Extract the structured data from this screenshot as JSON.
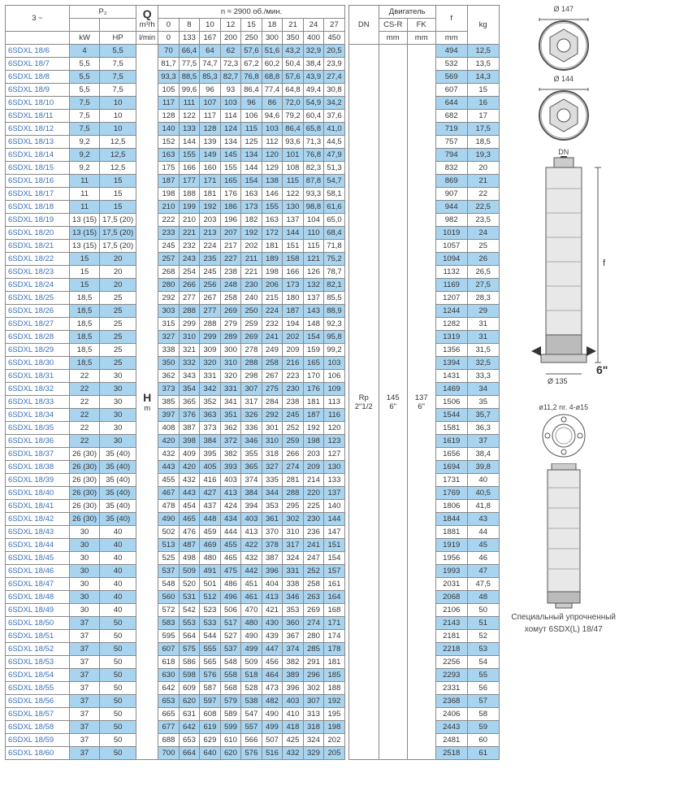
{
  "header": {
    "phase": "3 ~",
    "p2": "P₂",
    "kW": "kW",
    "HP": "HP",
    "Q": "Q",
    "q_unit1": "m³/h",
    "q_unit2": "l/min",
    "rpm": "n ≈ 2900 об./мин.",
    "DN": "DN",
    "motor": "Двигатель",
    "CSR": "CS-R",
    "FK": "FK",
    "mm": "mm",
    "f": "f",
    "kg": "kg",
    "H": "H",
    "m": "m"
  },
  "flow_m3h": [
    "0",
    "8",
    "10",
    "12",
    "15",
    "18",
    "21",
    "24",
    "27"
  ],
  "flow_lmin": [
    "0",
    "133",
    "167",
    "200",
    "250",
    "300",
    "350",
    "400",
    "450"
  ],
  "dn_val": "Rp 2\"1/2",
  "csr_val": "145 6\"",
  "fk_val": "137 6\"",
  "rows": [
    {
      "m": "6SDXL 18/6",
      "kw": "4",
      "hp": "5,5",
      "v": [
        "70",
        "66,4",
        "64",
        "62",
        "57,6",
        "51,6",
        "43,2",
        "32,9",
        "20,5"
      ],
      "f": "494",
      "kg": "12,5"
    },
    {
      "m": "6SDXL 18/7",
      "kw": "5,5",
      "hp": "7,5",
      "v": [
        "81,7",
        "77,5",
        "74,7",
        "72,3",
        "67,2",
        "60,2",
        "50,4",
        "38,4",
        "23,9"
      ],
      "f": "532",
      "kg": "13,5"
    },
    {
      "m": "6SDXL 18/8",
      "kw": "5,5",
      "hp": "7,5",
      "v": [
        "93,3",
        "88,5",
        "85,3",
        "82,7",
        "76,8",
        "68,8",
        "57,6",
        "43,9",
        "27,4"
      ],
      "f": "569",
      "kg": "14,3"
    },
    {
      "m": "6SDXL 18/9",
      "kw": "5,5",
      "hp": "7,5",
      "v": [
        "105",
        "99,6",
        "96",
        "93",
        "86,4",
        "77,4",
        "64,8",
        "49,4",
        "30,8"
      ],
      "f": "607",
      "kg": "15"
    },
    {
      "m": "6SDXL 18/10",
      "kw": "7,5",
      "hp": "10",
      "v": [
        "117",
        "111",
        "107",
        "103",
        "96",
        "86",
        "72,0",
        "54,9",
        "34,2"
      ],
      "f": "644",
      "kg": "16"
    },
    {
      "m": "6SDXL 18/11",
      "kw": "7,5",
      "hp": "10",
      "v": [
        "128",
        "122",
        "117",
        "114",
        "106",
        "94,6",
        "79,2",
        "60,4",
        "37,6"
      ],
      "f": "682",
      "kg": "17"
    },
    {
      "m": "6SDXL 18/12",
      "kw": "7,5",
      "hp": "10",
      "v": [
        "140",
        "133",
        "128",
        "124",
        "115",
        "103",
        "86,4",
        "65,8",
        "41,0"
      ],
      "f": "719",
      "kg": "17,5"
    },
    {
      "m": "6SDXL 18/13",
      "kw": "9,2",
      "hp": "12,5",
      "v": [
        "152",
        "144",
        "139",
        "134",
        "125",
        "112",
        "93,6",
        "71,3",
        "44,5"
      ],
      "f": "757",
      "kg": "18,5"
    },
    {
      "m": "6SDXL 18/14",
      "kw": "9,2",
      "hp": "12,5",
      "v": [
        "163",
        "155",
        "149",
        "145",
        "134",
        "120",
        "101",
        "76,8",
        "47,9"
      ],
      "f": "794",
      "kg": "19,3"
    },
    {
      "m": "6SDXL 18/15",
      "kw": "9,2",
      "hp": "12,5",
      "v": [
        "175",
        "166",
        "160",
        "155",
        "144",
        "129",
        "108",
        "82,3",
        "51,3"
      ],
      "f": "832",
      "kg": "20"
    },
    {
      "m": "6SDXL 18/16",
      "kw": "11",
      "hp": "15",
      "v": [
        "187",
        "177",
        "171",
        "165",
        "154",
        "138",
        "115",
        "87,8",
        "54,7"
      ],
      "f": "869",
      "kg": "21"
    },
    {
      "m": "6SDXL 18/17",
      "kw": "11",
      "hp": "15",
      "v": [
        "198",
        "188",
        "181",
        "176",
        "163",
        "146",
        "122",
        "93,3",
        "58,1"
      ],
      "f": "907",
      "kg": "22"
    },
    {
      "m": "6SDXL 18/18",
      "kw": "11",
      "hp": "15",
      "v": [
        "210",
        "199",
        "192",
        "186",
        "173",
        "155",
        "130",
        "98,8",
        "61,6"
      ],
      "f": "944",
      "kg": "22,5"
    },
    {
      "m": "6SDXL 18/19",
      "kw": "13 (15)",
      "hp": "17,5 (20)",
      "v": [
        "222",
        "210",
        "203",
        "196",
        "182",
        "163",
        "137",
        "104",
        "65,0"
      ],
      "f": "982",
      "kg": "23,5"
    },
    {
      "m": "6SDXL 18/20",
      "kw": "13 (15)",
      "hp": "17,5 (20)",
      "v": [
        "233",
        "221",
        "213",
        "207",
        "192",
        "172",
        "144",
        "110",
        "68,4"
      ],
      "f": "1019",
      "kg": "24"
    },
    {
      "m": "6SDXL 18/21",
      "kw": "13 (15)",
      "hp": "17,5 (20)",
      "v": [
        "245",
        "232",
        "224",
        "217",
        "202",
        "181",
        "151",
        "115",
        "71,8"
      ],
      "f": "1057",
      "kg": "25"
    },
    {
      "m": "6SDXL 18/22",
      "kw": "15",
      "hp": "20",
      "v": [
        "257",
        "243",
        "235",
        "227",
        "211",
        "189",
        "158",
        "121",
        "75,2"
      ],
      "f": "1094",
      "kg": "26"
    },
    {
      "m": "6SDXL 18/23",
      "kw": "15",
      "hp": "20",
      "v": [
        "268",
        "254",
        "245",
        "238",
        "221",
        "198",
        "166",
        "126",
        "78,7"
      ],
      "f": "1132",
      "kg": "26,5"
    },
    {
      "m": "6SDXL 18/24",
      "kw": "15",
      "hp": "20",
      "v": [
        "280",
        "266",
        "256",
        "248",
        "230",
        "206",
        "173",
        "132",
        "82,1"
      ],
      "f": "1169",
      "kg": "27,5"
    },
    {
      "m": "6SDXL 18/25",
      "kw": "18,5",
      "hp": "25",
      "v": [
        "292",
        "277",
        "267",
        "258",
        "240",
        "215",
        "180",
        "137",
        "85,5"
      ],
      "f": "1207",
      "kg": "28,3"
    },
    {
      "m": "6SDXL 18/26",
      "kw": "18,5",
      "hp": "25",
      "v": [
        "303",
        "288",
        "277",
        "269",
        "250",
        "224",
        "187",
        "143",
        "88,9"
      ],
      "f": "1244",
      "kg": "29"
    },
    {
      "m": "6SDXL 18/27",
      "kw": "18,5",
      "hp": "25",
      "v": [
        "315",
        "299",
        "288",
        "279",
        "259",
        "232",
        "194",
        "148",
        "92,3"
      ],
      "f": "1282",
      "kg": "31"
    },
    {
      "m": "6SDXL 18/28",
      "kw": "18,5",
      "hp": "25",
      "v": [
        "327",
        "310",
        "299",
        "289",
        "269",
        "241",
        "202",
        "154",
        "95,8"
      ],
      "f": "1319",
      "kg": "31"
    },
    {
      "m": "6SDXL 18/29",
      "kw": "18,5",
      "hp": "25",
      "v": [
        "338",
        "321",
        "309",
        "300",
        "278",
        "249",
        "209",
        "159",
        "99,2"
      ],
      "f": "1356",
      "kg": "31,5"
    },
    {
      "m": "6SDXL 18/30",
      "kw": "18,5",
      "hp": "25",
      "v": [
        "350",
        "332",
        "320",
        "310",
        "288",
        "258",
        "216",
        "165",
        "103"
      ],
      "f": "1394",
      "kg": "32,5"
    },
    {
      "m": "6SDXL 18/31",
      "kw": "22",
      "hp": "30",
      "v": [
        "362",
        "343",
        "331",
        "320",
        "298",
        "267",
        "223",
        "170",
        "106"
      ],
      "f": "1431",
      "kg": "33,3"
    },
    {
      "m": "6SDXL 18/32",
      "kw": "22",
      "hp": "30",
      "v": [
        "373",
        "354",
        "342",
        "331",
        "307",
        "275",
        "230",
        "176",
        "109"
      ],
      "f": "1469",
      "kg": "34"
    },
    {
      "m": "6SDXL 18/33",
      "kw": "22",
      "hp": "30",
      "v": [
        "385",
        "365",
        "352",
        "341",
        "317",
        "284",
        "238",
        "181",
        "113"
      ],
      "f": "1506",
      "kg": "35"
    },
    {
      "m": "6SDXL 18/34",
      "kw": "22",
      "hp": "30",
      "v": [
        "397",
        "376",
        "363",
        "351",
        "326",
        "292",
        "245",
        "187",
        "116"
      ],
      "f": "1544",
      "kg": "35,7"
    },
    {
      "m": "6SDXL 18/35",
      "kw": "22",
      "hp": "30",
      "v": [
        "408",
        "387",
        "373",
        "362",
        "336",
        "301",
        "252",
        "192",
        "120"
      ],
      "f": "1581",
      "kg": "36,3"
    },
    {
      "m": "6SDXL 18/36",
      "kw": "22",
      "hp": "30",
      "v": [
        "420",
        "398",
        "384",
        "372",
        "346",
        "310",
        "259",
        "198",
        "123"
      ],
      "f": "1619",
      "kg": "37"
    },
    {
      "m": "6SDXL 18/37",
      "kw": "26 (30)",
      "hp": "35 (40)",
      "v": [
        "432",
        "409",
        "395",
        "382",
        "355",
        "318",
        "266",
        "203",
        "127"
      ],
      "f": "1656",
      "kg": "38,4"
    },
    {
      "m": "6SDXL 18/38",
      "kw": "26 (30)",
      "hp": "35 (40)",
      "v": [
        "443",
        "420",
        "405",
        "393",
        "365",
        "327",
        "274",
        "209",
        "130"
      ],
      "f": "1694",
      "kg": "39,8"
    },
    {
      "m": "6SDXL 18/39",
      "kw": "26 (30)",
      "hp": "35 (40)",
      "v": [
        "455",
        "432",
        "416",
        "403",
        "374",
        "335",
        "281",
        "214",
        "133"
      ],
      "f": "1731",
      "kg": "40"
    },
    {
      "m": "6SDXL 18/40",
      "kw": "26 (30)",
      "hp": "35 (40)",
      "v": [
        "467",
        "443",
        "427",
        "413",
        "384",
        "344",
        "288",
        "220",
        "137"
      ],
      "f": "1769",
      "kg": "40,5"
    },
    {
      "m": "6SDXL 18/41",
      "kw": "26 (30)",
      "hp": "35 (40)",
      "v": [
        "478",
        "454",
        "437",
        "424",
        "394",
        "353",
        "295",
        "225",
        "140"
      ],
      "f": "1806",
      "kg": "41,8"
    },
    {
      "m": "6SDXL 18/42",
      "kw": "26 (30)",
      "hp": "35 (40)",
      "v": [
        "490",
        "465",
        "448",
        "434",
        "403",
        "361",
        "302",
        "230",
        "144"
      ],
      "f": "1844",
      "kg": "43"
    },
    {
      "m": "6SDXL 18/43",
      "kw": "30",
      "hp": "40",
      "v": [
        "502",
        "476",
        "459",
        "444",
        "413",
        "370",
        "310",
        "236",
        "147"
      ],
      "f": "1881",
      "kg": "44"
    },
    {
      "m": "6SDXL 18/44",
      "kw": "30",
      "hp": "40",
      "v": [
        "513",
        "487",
        "469",
        "455",
        "422",
        "378",
        "317",
        "241",
        "151"
      ],
      "f": "1919",
      "kg": "45"
    },
    {
      "m": "6SDXL 18/45",
      "kw": "30",
      "hp": "40",
      "v": [
        "525",
        "498",
        "480",
        "465",
        "432",
        "387",
        "324",
        "247",
        "154"
      ],
      "f": "1956",
      "kg": "46"
    },
    {
      "m": "6SDXL 18/46",
      "kw": "30",
      "hp": "40",
      "v": [
        "537",
        "509",
        "491",
        "475",
        "442",
        "396",
        "331",
        "252",
        "157"
      ],
      "f": "1993",
      "kg": "47"
    },
    {
      "m": "6SDXL 18/47",
      "kw": "30",
      "hp": "40",
      "v": [
        "548",
        "520",
        "501",
        "486",
        "451",
        "404",
        "338",
        "258",
        "161"
      ],
      "f": "2031",
      "kg": "47,5"
    },
    {
      "m": "6SDXL 18/48",
      "kw": "30",
      "hp": "40",
      "v": [
        "560",
        "531",
        "512",
        "496",
        "461",
        "413",
        "346",
        "263",
        "164"
      ],
      "f": "2068",
      "kg": "48"
    },
    {
      "m": "6SDXL 18/49",
      "kw": "30",
      "hp": "40",
      "v": [
        "572",
        "542",
        "523",
        "506",
        "470",
        "421",
        "353",
        "269",
        "168"
      ],
      "f": "2106",
      "kg": "50"
    },
    {
      "m": "6SDXL 18/50",
      "kw": "37",
      "hp": "50",
      "v": [
        "583",
        "553",
        "533",
        "517",
        "480",
        "430",
        "360",
        "274",
        "171"
      ],
      "f": "2143",
      "kg": "51"
    },
    {
      "m": "6SDXL 18/51",
      "kw": "37",
      "hp": "50",
      "v": [
        "595",
        "564",
        "544",
        "527",
        "490",
        "439",
        "367",
        "280",
        "174"
      ],
      "f": "2181",
      "kg": "52"
    },
    {
      "m": "6SDXL 18/52",
      "kw": "37",
      "hp": "50",
      "v": [
        "607",
        "575",
        "555",
        "537",
        "499",
        "447",
        "374",
        "285",
        "178"
      ],
      "f": "2218",
      "kg": "53"
    },
    {
      "m": "6SDXL 18/53",
      "kw": "37",
      "hp": "50",
      "v": [
        "618",
        "586",
        "565",
        "548",
        "509",
        "456",
        "382",
        "291",
        "181"
      ],
      "f": "2256",
      "kg": "54"
    },
    {
      "m": "6SDXL 18/54",
      "kw": "37",
      "hp": "50",
      "v": [
        "630",
        "598",
        "576",
        "558",
        "518",
        "464",
        "389",
        "296",
        "185"
      ],
      "f": "2293",
      "kg": "55"
    },
    {
      "m": "6SDXL 18/55",
      "kw": "37",
      "hp": "50",
      "v": [
        "642",
        "609",
        "587",
        "568",
        "528",
        "473",
        "396",
        "302",
        "188"
      ],
      "f": "2331",
      "kg": "56"
    },
    {
      "m": "6SDXL 18/56",
      "kw": "37",
      "hp": "50",
      "v": [
        "653",
        "620",
        "597",
        "579",
        "538",
        "482",
        "403",
        "307",
        "192"
      ],
      "f": "2368",
      "kg": "57"
    },
    {
      "m": "6SDXL 18/57",
      "kw": "37",
      "hp": "50",
      "v": [
        "665",
        "631",
        "608",
        "589",
        "547",
        "490",
        "410",
        "313",
        "195"
      ],
      "f": "2406",
      "kg": "58"
    },
    {
      "m": "6SDXL 18/58",
      "kw": "37",
      "hp": "50",
      "v": [
        "677",
        "642",
        "619",
        "599",
        "557",
        "499",
        "418",
        "318",
        "198"
      ],
      "f": "2443",
      "kg": "59"
    },
    {
      "m": "6SDXL 18/59",
      "kw": "37",
      "hp": "50",
      "v": [
        "688",
        "653",
        "629",
        "610",
        "566",
        "507",
        "425",
        "324",
        "202"
      ],
      "f": "2481",
      "kg": "60"
    },
    {
      "m": "6SDXL 18/60",
      "kw": "37",
      "hp": "50",
      "v": [
        "700",
        "664",
        "640",
        "620",
        "576",
        "516",
        "432",
        "329",
        "205"
      ],
      "f": "2518",
      "kg": "61"
    }
  ],
  "diagrams": {
    "d147": "Ø 147",
    "d144": "Ø 144",
    "dn": "DN",
    "f": "f",
    "d135": "Ø 135",
    "six": "6\"",
    "flange": "ø11,2   nr. 4-ø15",
    "caption1": "Специальный упрочненный",
    "caption2": "хомут 6SDX(L) 18/47"
  },
  "colors": {
    "blue_row": "#a8d4f0",
    "model_text": "#3a6fb7",
    "border": "#888888"
  }
}
